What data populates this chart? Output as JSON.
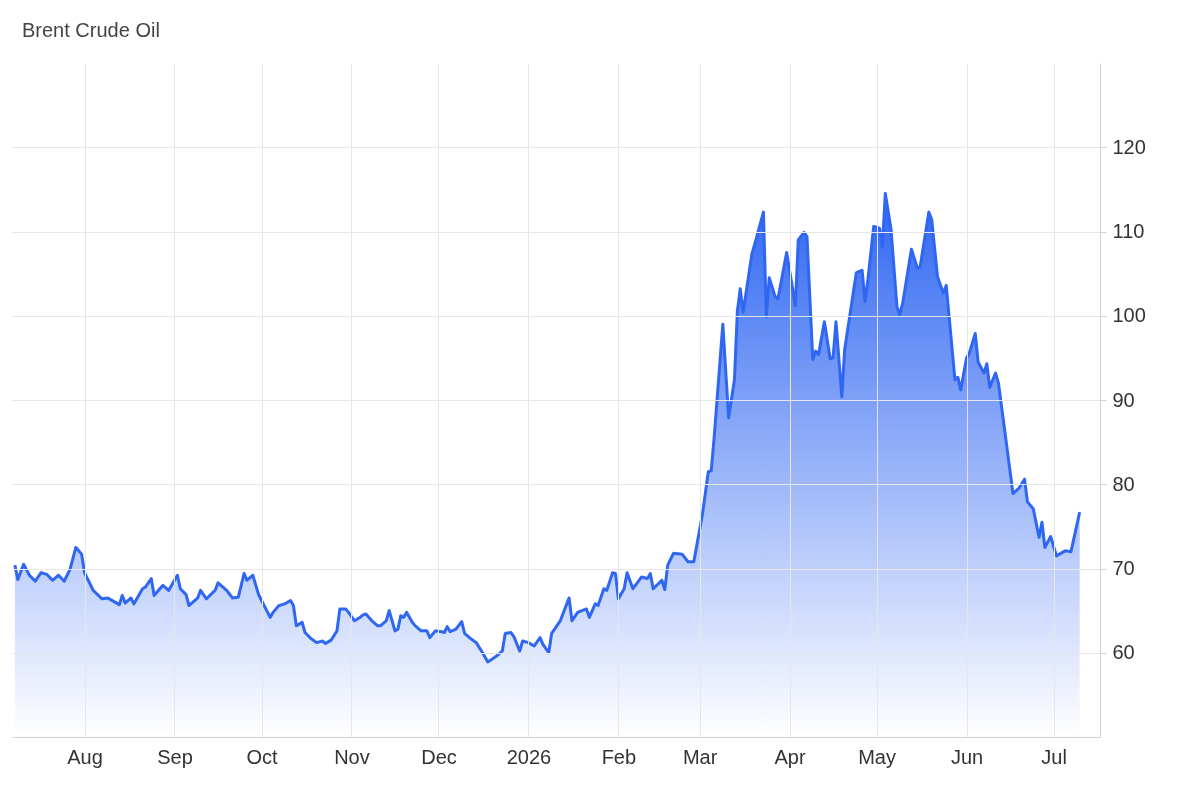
{
  "chart_data": {
    "type": "area",
    "title": "Brent Crude Oil",
    "x": [
      "2025-07-08",
      "2025-07-09",
      "2025-07-11",
      "2025-07-13",
      "2025-07-15",
      "2025-07-17",
      "2025-07-19",
      "2025-07-21",
      "2025-07-23",
      "2025-07-25",
      "2025-07-27",
      "2025-07-29",
      "2025-07-31",
      "2025-08-01",
      "2025-08-04",
      "2025-08-07",
      "2025-08-09",
      "2025-08-13",
      "2025-08-14",
      "2025-08-15",
      "2025-08-17",
      "2025-08-18",
      "2025-08-21",
      "2025-08-22",
      "2025-08-24",
      "2025-08-25",
      "2025-08-28",
      "2025-08-30",
      "2025-09-02",
      "2025-09-03",
      "2025-09-05",
      "2025-09-06",
      "2025-09-09",
      "2025-09-10",
      "2025-09-12",
      "2025-09-15",
      "2025-09-16",
      "2025-09-19",
      "2025-09-21",
      "2025-09-23",
      "2025-09-25",
      "2025-09-26",
      "2025-09-28",
      "2025-09-30",
      "2025-10-01",
      "2025-10-04",
      "2025-10-05",
      "2025-10-07",
      "2025-10-09",
      "2025-10-11",
      "2025-10-12",
      "2025-10-13",
      "2025-10-15",
      "2025-10-16",
      "2025-10-18",
      "2025-10-20",
      "2025-10-22",
      "2025-10-23",
      "2025-10-25",
      "2025-10-27",
      "2025-10-28",
      "2025-10-30",
      "2025-10-31",
      "2025-11-02",
      "2025-11-04",
      "2025-11-05",
      "2025-11-06",
      "2025-11-08",
      "2025-11-10",
      "2025-11-11",
      "2025-11-13",
      "2025-11-14",
      "2025-11-16",
      "2025-11-17",
      "2025-11-18",
      "2025-11-19",
      "2025-11-20",
      "2025-11-22",
      "2025-11-23",
      "2025-11-25",
      "2025-11-27",
      "2025-11-28",
      "2025-11-30",
      "2025-12-02",
      "2025-12-03",
      "2025-12-04",
      "2025-12-05",
      "2025-12-07",
      "2025-12-09",
      "2025-12-10",
      "2025-12-12",
      "2025-12-14",
      "2025-12-16",
      "2025-12-18",
      "2025-12-21",
      "2025-12-23",
      "2025-12-24",
      "2025-12-26",
      "2025-12-27",
      "2025-12-29",
      "2025-12-30",
      "2026-01-01",
      "2026-01-03",
      "2026-01-05",
      "2026-01-06",
      "2026-01-08",
      "2026-01-09",
      "2026-01-11",
      "2026-01-12",
      "2026-01-15",
      "2026-01-16",
      "2026-01-18",
      "2026-01-21",
      "2026-01-22",
      "2026-01-24",
      "2026-01-25",
      "2026-01-27",
      "2026-01-28",
      "2026-01-30",
      "2026-01-31",
      "2026-02-01",
      "2026-02-03",
      "2026-02-04",
      "2026-02-06",
      "2026-02-09",
      "2026-02-11",
      "2026-02-12",
      "2026-02-13",
      "2026-02-16",
      "2026-02-17",
      "2026-02-18",
      "2026-02-20",
      "2026-02-23",
      "2026-02-25",
      "2026-02-27",
      "2026-02-28",
      "2026-03-02",
      "2026-03-04",
      "2026-03-05",
      "2026-03-06",
      "2026-03-09",
      "2026-03-11",
      "2026-03-13",
      "2026-03-14",
      "2026-03-15",
      "2026-03-16",
      "2026-03-19",
      "2026-03-20",
      "2026-03-23",
      "2026-03-24",
      "2026-03-25",
      "2026-03-27",
      "2026-03-28",
      "2026-03-31",
      "2026-04-03",
      "2026-04-04",
      "2026-04-06",
      "2026-04-07",
      "2026-04-09",
      "2026-04-10",
      "2026-04-11",
      "2026-04-13",
      "2026-04-15",
      "2026-04-16",
      "2026-04-17",
      "2026-04-19",
      "2026-04-20",
      "2026-04-24",
      "2026-04-26",
      "2026-04-27",
      "2026-04-28",
      "2026-04-30",
      "2026-05-02",
      "2026-05-03",
      "2026-05-04",
      "2026-05-06",
      "2026-05-08",
      "2026-05-09",
      "2026-05-10",
      "2026-05-13",
      "2026-05-15",
      "2026-05-16",
      "2026-05-19",
      "2026-05-20",
      "2026-05-22",
      "2026-05-24",
      "2026-05-25",
      "2026-05-28",
      "2026-05-29",
      "2026-05-30",
      "2026-06-01",
      "2026-06-02",
      "2026-06-04",
      "2026-06-05",
      "2026-06-07",
      "2026-06-08",
      "2026-06-09",
      "2026-06-11",
      "2026-06-12",
      "2026-06-14",
      "2026-06-17",
      "2026-06-19",
      "2026-06-21",
      "2026-06-22",
      "2026-06-24",
      "2026-06-26",
      "2026-06-27",
      "2026-06-28",
      "2026-06-30",
      "2026-07-02",
      "2026-07-05",
      "2026-07-07",
      "2026-07-10"
    ],
    "series": [
      {
        "color": "#2f66f2",
        "values": [
          70.4,
          68.7,
          70.5,
          69.2,
          68.5,
          69.5,
          69.3,
          68.6,
          69.2,
          68.5,
          69.9,
          72.5,
          71.7,
          69.5,
          67.4,
          66.4,
          66.5,
          65.7,
          66.8,
          65.9,
          66.5,
          65.8,
          67.6,
          67.8,
          68.8,
          66.8,
          68.0,
          67.4,
          69.2,
          67.6,
          66.9,
          65.6,
          66.5,
          67.4,
          66.4,
          67.4,
          68.3,
          67.4,
          66.5,
          66.6,
          69.4,
          68.6,
          69.2,
          66.9,
          66.2,
          64.2,
          64.8,
          65.6,
          65.8,
          66.2,
          65.6,
          63.2,
          63.6,
          62.4,
          61.7,
          61.2,
          61.4,
          61.1,
          61.5,
          62.6,
          65.2,
          65.2,
          64.8,
          63.8,
          64.2,
          64.5,
          64.6,
          63.8,
          63.2,
          63.2,
          63.8,
          65.0,
          62.6,
          62.8,
          64.4,
          64.2,
          64.8,
          63.6,
          63.2,
          62.6,
          62.6,
          61.8,
          62.6,
          62.5,
          62.4,
          63.1,
          62.5,
          62.8,
          63.7,
          62.3,
          61.7,
          61.2,
          60.1,
          58.9,
          59.6,
          60.2,
          62.3,
          62.4,
          61.9,
          60.2,
          61.4,
          61.2,
          60.8,
          61.8,
          61.0,
          60.0,
          62.3,
          63.3,
          63.8,
          66.5,
          63.8,
          64.8,
          65.2,
          64.2,
          65.8,
          65.6,
          67.6,
          67.4,
          69.5,
          69.4,
          66.4,
          67.6,
          69.5,
          67.6,
          69.0,
          68.8,
          69.4,
          67.6,
          68.6,
          67.5,
          70.4,
          71.8,
          71.7,
          70.8,
          70.8,
          72.7,
          76.5,
          81.5,
          81.6,
          85.5,
          99.0,
          87.9,
          92.4,
          100.5,
          103.2,
          100.4,
          107.3,
          108.5,
          112.3,
          99.9,
          104.5,
          102.3,
          102.0,
          107.5,
          101.2,
          109.0,
          109.9,
          109.4,
          94.8,
          95.8,
          95.4,
          99.3,
          94.9,
          95.0,
          99.3,
          90.4,
          96.0,
          105.1,
          105.4,
          101.7,
          104.3,
          110.6,
          110.4,
          108.2,
          114.5,
          110.2,
          101.1,
          100.1,
          101.5,
          107.9,
          105.7,
          105.8,
          112.3,
          111.4,
          104.6,
          102.7,
          103.6,
          92.4,
          92.7,
          91.2,
          95.0,
          95.6,
          97.9,
          94.5,
          93.2,
          94.3,
          91.5,
          93.2,
          92.0,
          86.8,
          78.9,
          79.5,
          80.6,
          77.9,
          77.1,
          73.7,
          75.5,
          72.5,
          73.8,
          71.5,
          72.1,
          72.0,
          76.7
        ]
      }
    ],
    "xlim": [
      "2025-07-07",
      "2026-07-17"
    ],
    "xticks": [
      {
        "value": "2025-08-01",
        "label": "Aug"
      },
      {
        "value": "2025-09-01",
        "label": "Sep"
      },
      {
        "value": "2025-10-01",
        "label": "Oct"
      },
      {
        "value": "2025-11-01",
        "label": "Nov"
      },
      {
        "value": "2025-12-01",
        "label": "Dec"
      },
      {
        "value": "2026-01-01",
        "label": "2026"
      },
      {
        "value": "2026-02-01",
        "label": "Feb"
      },
      {
        "value": "2026-03-01",
        "label": "Mar"
      },
      {
        "value": "2026-04-01",
        "label": "Apr"
      },
      {
        "value": "2026-05-01",
        "label": "May"
      },
      {
        "value": "2026-06-01",
        "label": "Jun"
      },
      {
        "value": "2026-07-01",
        "label": "Jul"
      }
    ],
    "ylim": [
      50,
      130
    ],
    "yticks": [
      60,
      70,
      80,
      90,
      100,
      110,
      120
    ],
    "grid": true
  }
}
